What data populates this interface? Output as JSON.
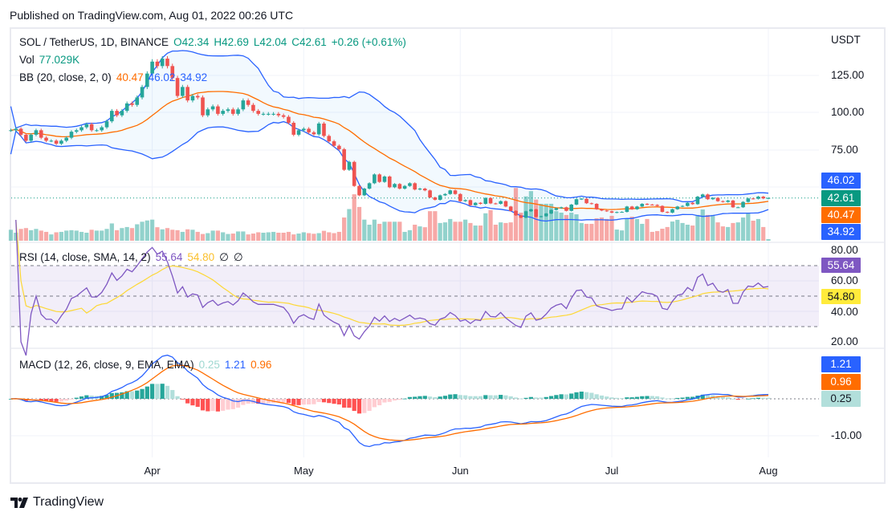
{
  "published": "Published on TradingView.com, Aug 01, 2022 00:26 UTC",
  "brand": "TradingView",
  "legend": {
    "symbol": "SOL / TetherUS, 1D, BINANCE",
    "open": "O42.34",
    "high": "H42.69",
    "low": "L42.04",
    "close": "C42.61",
    "change": "+0.26 (+0.61%)",
    "vol_label": "Vol",
    "vol_value": "77.029K",
    "bb_label": "BB (20, close, 2, 0)",
    "bb_basis": "40.47",
    "bb_upper": "46.02",
    "bb_lower": "34.92",
    "rsi_label": "RSI (14, close, SMA, 14, 2)",
    "rsi_value": "55.64",
    "rsi_ma": "54.80",
    "rsi_na1": "∅",
    "rsi_na2": "∅",
    "macd_label": "MACD (12, 26, close, 9, EMA, EMA)",
    "macd_hist": "0.25",
    "macd_line": "1.21",
    "macd_signal": "0.96"
  },
  "price_axis": {
    "unit": "USDT",
    "ticks": [
      "125.00",
      "100.00",
      "75.00"
    ]
  },
  "rsi_axis": {
    "ticks": [
      "80.00",
      "60.00",
      "40.00",
      "20.00"
    ]
  },
  "macd_axis": {
    "ticks": [
      "-10.00"
    ]
  },
  "badges": {
    "bb_upper": "46.02",
    "last": "42.61",
    "bb_basis": "40.47",
    "bb_lower": "34.92",
    "rsi": "55.64",
    "rsi_ma": "54.80",
    "macd": "1.21",
    "signal": "0.96",
    "hist": "0.25"
  },
  "time_axis": [
    "Apr",
    "May",
    "Jun",
    "Jul",
    "Aug"
  ],
  "colors": {
    "up": "#26a69a",
    "down": "#ef5350",
    "bb_band": "#2962ff",
    "bb_basis": "#ff6d00",
    "rsi": "#7e57c2",
    "rsi_ma": "#fdd835",
    "macd": "#2962ff",
    "signal": "#ff6d00"
  },
  "chart_data": {
    "type": "candlestick",
    "x_range": [
      "2022-03-04",
      "2022-08-01"
    ],
    "x_ticks": [
      {
        "label": "Apr",
        "date": "2022-04-01"
      },
      {
        "label": "May",
        "date": "2022-05-01"
      },
      {
        "label": "Jun",
        "date": "2022-06-01"
      },
      {
        "label": "Jul",
        "date": "2022-07-01"
      },
      {
        "label": "Aug",
        "date": "2022-08-01"
      }
    ],
    "ylim_price": [
      28,
      150
    ],
    "last_open": 42.34,
    "closes": [
      88,
      89,
      85,
      81,
      85,
      88,
      83,
      81,
      81,
      79,
      81,
      83,
      87,
      88,
      90,
      92,
      88,
      88,
      90,
      94,
      101,
      98,
      101,
      106,
      105,
      110,
      117,
      126,
      134,
      131,
      136,
      131,
      123,
      111,
      117,
      108,
      111,
      110,
      98,
      102,
      104,
      99,
      101,
      102,
      99,
      102,
      108,
      105,
      101,
      99,
      99,
      99,
      99,
      98,
      97,
      93,
      85,
      88,
      89,
      86.6,
      85.3,
      92.5,
      84.2,
      80.6,
      77.6,
      75.3,
      61.5,
      66.8,
      50.7,
      44.4,
      48.9,
      52.5,
      58.4,
      53.4,
      57,
      49.8,
      52,
      48.9,
      50.7,
      52.5,
      48.3,
      48.9,
      47.7,
      43,
      41.4,
      44.4,
      45.3,
      47.7,
      45.3,
      40.5,
      41.2,
      37.8,
      39.4,
      38.7,
      42.6,
      39,
      38.7,
      40.5,
      36.9,
      34,
      31,
      29.4,
      33.7,
      35,
      29.9,
      30.4,
      32.2,
      34.6,
      35.8,
      36.4,
      34,
      38.2,
      41.8,
      42.1,
      39.1,
      38.7,
      35.1,
      34.2,
      33.7,
      32.8,
      33.2,
      33.3,
      36.9,
      35.1,
      36.9,
      38.7,
      38.2,
      38,
      37.3,
      33.3,
      32.8,
      35.1,
      36.9,
      37.3,
      39.4,
      38.5,
      43.5,
      45,
      41.8,
      42.7,
      40.5,
      40,
      40.9,
      36.4,
      36.4,
      40,
      42.3,
      42.1,
      43.5,
      42.34,
      42.61
    ],
    "volume_k": [
      520,
      380,
      560,
      600,
      500,
      560,
      480,
      420,
      300,
      400,
      420,
      480,
      500,
      480,
      420,
      380,
      520,
      480,
      480,
      560,
      820,
      500,
      600,
      650,
      600,
      780,
      900,
      960,
      1000,
      640,
      540,
      600,
      520,
      500,
      420,
      540,
      520,
      420,
      320,
      360,
      480,
      480,
      400,
      320,
      340,
      440,
      440,
      300,
      340,
      400,
      380,
      400,
      420,
      380,
      380,
      420,
      300,
      340,
      400,
      360,
      330,
      360,
      470,
      400,
      360,
      420,
      1100,
      1500,
      2200,
      1600,
      1000,
      760,
      1000,
      800,
      900,
      900,
      900,
      900,
      420,
      500,
      760,
      680,
      640,
      1400,
      1400,
      840,
      870,
      1030,
      900,
      900,
      1000,
      840,
      720,
      720,
      1300,
      1450,
      760,
      870,
      840,
      870,
      2500,
      1330,
      2100,
      2350,
      1950,
      1750,
      1750,
      1750,
      1400,
      1330,
      1220,
      1330,
      1250,
      840,
      800,
      800,
      1060,
      1100,
      1030,
      1180,
      530,
      490,
      1030,
      1140,
      1030,
      800,
      1030,
      420,
      460,
      570,
      650,
      910,
      990,
      840,
      760,
      720,
      1220,
      1480,
      1220,
      1220,
      870,
      680,
      650,
      840,
      870,
      1100,
      1330,
      950,
      1030,
      650,
      77.029
    ],
    "indicators": {
      "bb": {
        "length": 20,
        "mult": 2
      },
      "rsi": {
        "length": 14,
        "ma_length": 14,
        "upper": 70,
        "middle": 50,
        "lower": 30,
        "ylim": [
          10,
          90
        ]
      },
      "macd": {
        "fast": 12,
        "slow": 26,
        "signal": 9
      }
    }
  }
}
